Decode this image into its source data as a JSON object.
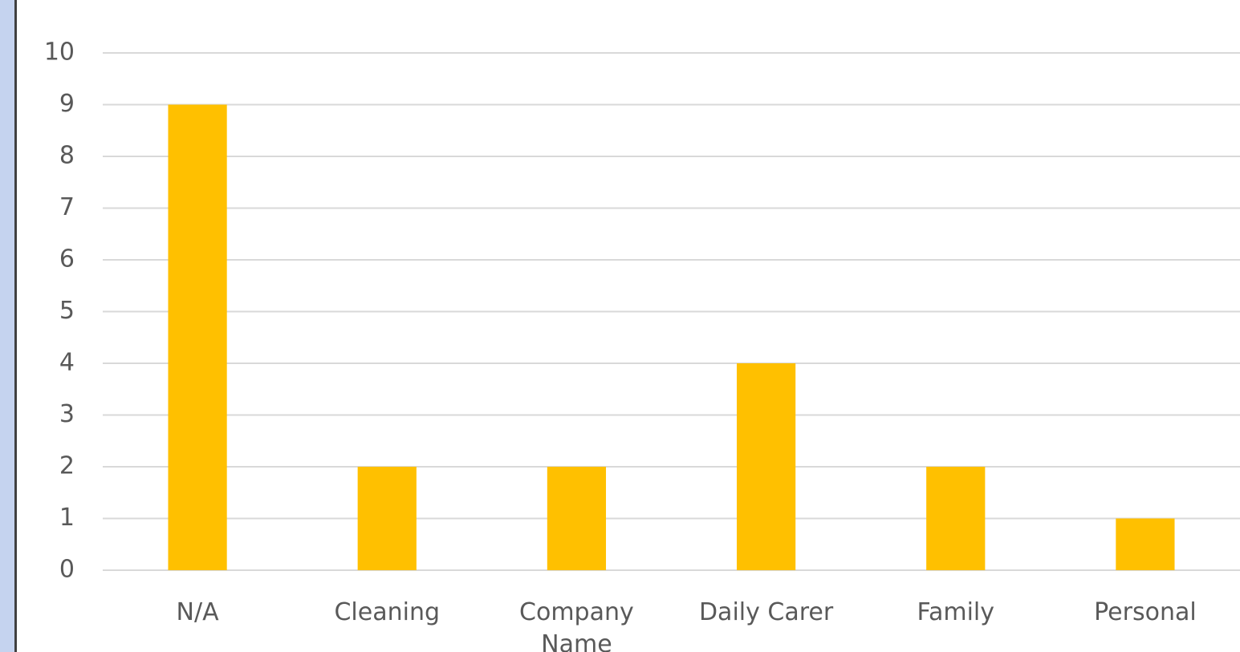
{
  "chart_data": {
    "type": "bar",
    "categories": [
      "N/A",
      "Cleaning",
      "Company Name",
      "Daily Carer",
      "Family",
      "Personal"
    ],
    "values": [
      9,
      2,
      2,
      4,
      2,
      1
    ],
    "color": "#ffc000",
    "ylim": [
      0,
      10
    ],
    "yticks": [
      0,
      1,
      2,
      3,
      4,
      5,
      6,
      7,
      8,
      9,
      10
    ],
    "grid": true
  }
}
